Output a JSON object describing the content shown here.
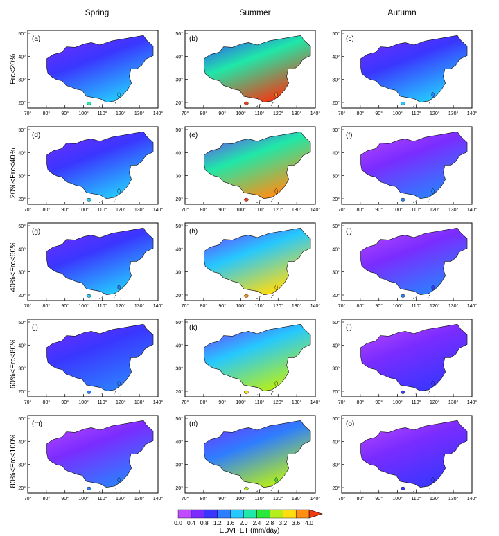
{
  "columns": [
    "Spring",
    "Summer",
    "Autumn"
  ],
  "rows": [
    "Frc<20%",
    "20%<Frc<40%",
    "40%<Frc<60%",
    "60%<Frc<80%",
    "80%<Frc<100%"
  ],
  "panel_labels": [
    [
      "(a)",
      "(b)",
      "(c)"
    ],
    [
      "(d)",
      "(e)",
      "(f)"
    ],
    [
      "(g)",
      "(h)",
      "(i)"
    ],
    [
      "(j)",
      "(k)",
      "(l)"
    ],
    [
      "(m)",
      "(n)",
      "(o)"
    ]
  ],
  "x_ticks": [
    "70°",
    "80°",
    "90°",
    "100°",
    "110°",
    "120°",
    "130°",
    "140°"
  ],
  "y_ticks": [
    "50°",
    "40°",
    "30°",
    "20°"
  ],
  "colorbar": {
    "title": "EDVI−ET (mm/day)",
    "ticks": [
      "0.0",
      "0.4",
      "0.8",
      "1.2",
      "1.6",
      "2.0",
      "2.4",
      "2.8",
      "3.2",
      "3.6",
      "4.0"
    ],
    "colors": [
      "#c04bff",
      "#7a2cff",
      "#3a36ff",
      "#2e7dff",
      "#25c8ff",
      "#1fe8a8",
      "#29e83c",
      "#b6ee1c",
      "#ffdd10",
      "#ff8f14",
      "#f03a14"
    ]
  },
  "panel_levels": [
    [
      0.28,
      0.62,
      0.22
    ],
    [
      0.25,
      0.58,
      0.18
    ],
    [
      0.22,
      0.5,
      0.16
    ],
    [
      0.2,
      0.46,
      0.12
    ],
    [
      0.17,
      0.42,
      0.1
    ]
  ]
}
